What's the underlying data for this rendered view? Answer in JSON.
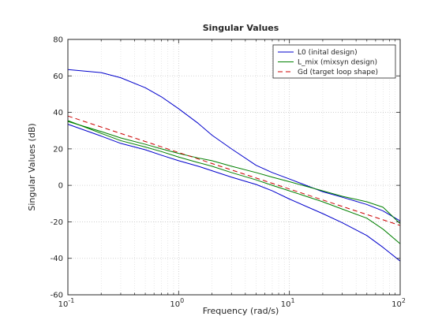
{
  "chart_data": {
    "type": "line",
    "title": "Singular Values",
    "xlabel": "Frequency (rad/s)",
    "ylabel": "Singular Values (dB)",
    "xscale": "log",
    "xlim": [
      0.1,
      100
    ],
    "ylim": [
      -60,
      80
    ],
    "y_ticks": [
      "-60",
      "-40",
      "-20",
      "0",
      "20",
      "40",
      "60",
      "80"
    ],
    "x_ticks": [
      {
        "base": "10",
        "exp": "-1"
      },
      {
        "base": "10",
        "exp": "0"
      },
      {
        "base": "10",
        "exp": "1"
      },
      {
        "base": "10",
        "exp": "2"
      }
    ],
    "grid": true,
    "minor_grid": true,
    "legend_position": "top-right",
    "series": [
      {
        "name": "L0 (inital design)",
        "color": "#0000cc",
        "style": "solid",
        "lines": [
          [
            [
              0.1,
              63.5
            ],
            [
              0.2,
              61.8
            ],
            [
              0.3,
              59
            ],
            [
              0.5,
              53.5
            ],
            [
              0.7,
              48.5
            ],
            [
              1,
              42
            ],
            [
              1.5,
              34
            ],
            [
              2,
              27.5
            ],
            [
              3,
              20
            ],
            [
              5,
              11
            ],
            [
              7,
              7
            ],
            [
              10,
              3.5
            ],
            [
              20,
              -3.5
            ],
            [
              30,
              -6.5
            ],
            [
              50,
              -10.5
            ],
            [
              70,
              -14
            ],
            [
              100,
              -19.5
            ]
          ],
          [
            [
              0.1,
              33.5
            ],
            [
              0.2,
              27
            ],
            [
              0.3,
              23
            ],
            [
              0.5,
              19.5
            ],
            [
              0.7,
              16.5
            ],
            [
              1,
              13.5
            ],
            [
              1.5,
              10.5
            ],
            [
              2,
              8
            ],
            [
              3,
              4.5
            ],
            [
              5,
              0.5
            ],
            [
              7,
              -3
            ],
            [
              10,
              -7.5
            ],
            [
              20,
              -15.5
            ],
            [
              30,
              -20.5
            ],
            [
              50,
              -27.5
            ],
            [
              70,
              -34
            ],
            [
              100,
              -41.5
            ]
          ]
        ]
      },
      {
        "name": "L_mix (mixsyn design)",
        "color": "#008000",
        "style": "solid",
        "lines": [
          [
            [
              0.1,
              35
            ],
            [
              0.2,
              29.5
            ],
            [
              0.3,
              26
            ],
            [
              0.5,
              22.5
            ],
            [
              0.7,
              20
            ],
            [
              1,
              17.5
            ],
            [
              1.5,
              15
            ],
            [
              2,
              13.5
            ],
            [
              3,
              10.5
            ],
            [
              5,
              7
            ],
            [
              7,
              4.5
            ],
            [
              10,
              2
            ],
            [
              20,
              -3
            ],
            [
              30,
              -6
            ],
            [
              50,
              -9
            ],
            [
              70,
              -12
            ],
            [
              100,
              -21
            ]
          ],
          [
            [
              0.1,
              35.5
            ],
            [
              0.2,
              28.5
            ],
            [
              0.3,
              24.5
            ],
            [
              0.5,
              21
            ],
            [
              0.7,
              18.5
            ],
            [
              1,
              15.5
            ],
            [
              1.5,
              12.5
            ],
            [
              2,
              10.5
            ],
            [
              3,
              7
            ],
            [
              5,
              3
            ],
            [
              7,
              0
            ],
            [
              10,
              -3
            ],
            [
              20,
              -9
            ],
            [
              30,
              -13
            ],
            [
              50,
              -18
            ],
            [
              70,
              -24
            ],
            [
              100,
              -32
            ]
          ]
        ]
      },
      {
        "name": "Gd (target loop shape)",
        "color": "#cc0000",
        "style": "dashed",
        "lines": [
          [
            [
              0.1,
              38
            ],
            [
              100,
              -22
            ]
          ]
        ]
      }
    ]
  }
}
